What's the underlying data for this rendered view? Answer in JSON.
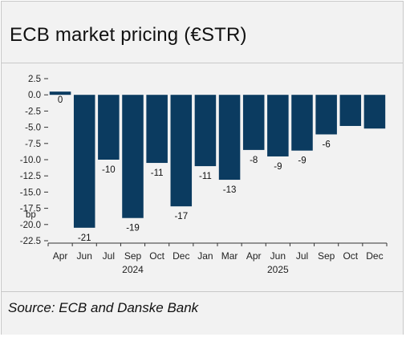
{
  "header": {
    "title": "ECB market pricing (€STR)"
  },
  "source": "Source: ECB and Danske Bank",
  "chart_data": {
    "type": "bar",
    "title": "ECB market pricing (€STR)",
    "ylabel": "bp",
    "ylim": [
      -22.5,
      2.5
    ],
    "yticks": [
      2.5,
      0.0,
      -2.5,
      -5.0,
      -7.5,
      -10.0,
      -12.5,
      -15.0,
      -17.5,
      -20.0,
      -22.5
    ],
    "ytick_labels": [
      "2.5",
      "0.0",
      "-2.5",
      "-5.0",
      "-7.5",
      "-10.0",
      "-12.5",
      "-15.0",
      "-17.5",
      "-20.0",
      "-22.5"
    ],
    "categories": [
      "Apr",
      "Jun",
      "Jul",
      "Sep",
      "Oct",
      "Dec",
      "Jan",
      "Mar",
      "Apr",
      "Jun",
      "Jul",
      "Sep",
      "Oct",
      "Dec"
    ],
    "year_labels": [
      {
        "label": "2024",
        "category_index": 3
      },
      {
        "label": "2025",
        "category_index": 9
      }
    ],
    "values": [
      0.5,
      -20.5,
      -10.0,
      -19.0,
      -10.5,
      -17.2,
      -11.0,
      -13.1,
      -8.5,
      -9.5,
      -8.6,
      -6.1,
      -4.8,
      -5.2
    ],
    "data_labels": [
      "0",
      "-21",
      "-10",
      "-19",
      "-11",
      "-17",
      "-11",
      "-13",
      "-8",
      "-9",
      "-9",
      "-6",
      "",
      ""
    ],
    "grid": false,
    "bar_color": "#0b3b60"
  }
}
